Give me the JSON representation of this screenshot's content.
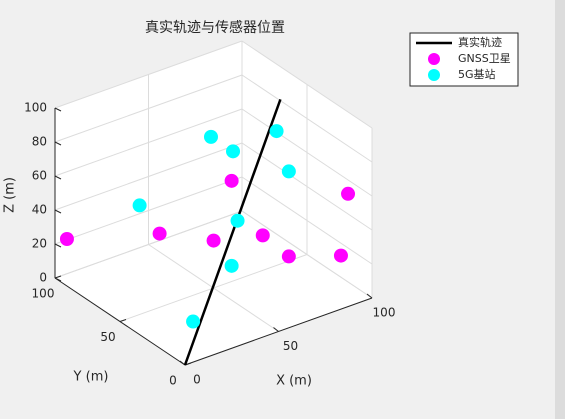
{
  "chart_data": {
    "type": "scatter3d",
    "title": "真实轨迹与传感器位置",
    "xlabel": "X (m)",
    "ylabel": "Y (m)",
    "zlabel": "Z (m)",
    "xlim": [
      0,
      100
    ],
    "ylim": [
      0,
      100
    ],
    "zlim": [
      0,
      100
    ],
    "xticks": [
      0,
      50,
      100
    ],
    "yticks": [
      0,
      50,
      100
    ],
    "zticks": [
      0,
      20,
      40,
      60,
      80,
      100
    ],
    "grid": true,
    "legend": "northeast",
    "series": [
      {
        "name": "真实轨迹",
        "mode": "line",
        "color": "#000000",
        "x": [
          0,
          83
        ],
        "y": [
          0,
          46
        ],
        "z": [
          0,
          100
        ]
      },
      {
        "name": "GNSS卫星",
        "mode": "markers",
        "color": "#ff00ff",
        "x": [
          5,
          33,
          57,
          59,
          68,
          75,
          98,
          99
        ],
        "y": [
          98,
          67,
          60,
          49,
          38,
          28,
          21,
          17
        ],
        "z": [
          22,
          30,
          20,
          60,
          30,
          20,
          15,
          53
        ]
      },
      {
        "name": "5G基站",
        "mode": "markers",
        "color": "#00ffff",
        "x": [
          57,
          66,
          74,
          75,
          23,
          58,
          59,
          21
        ],
        "y": [
          62,
          58,
          36,
          28,
          68,
          43,
          49,
          24
        ],
        "z": [
          80,
          70,
          90,
          70,
          50,
          40,
          10,
          5
        ]
      }
    ]
  }
}
